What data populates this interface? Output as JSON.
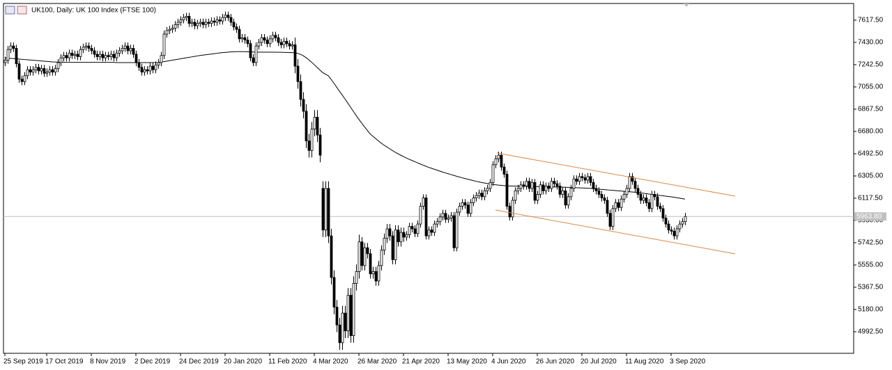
{
  "chart_data": {
    "type": "candlestick",
    "title": "UK100, Daily:  UK 100 Index (FTSE 100)",
    "categories": [
      "25 Sep 2019",
      null,
      null,
      null,
      null,
      null,
      null,
      null,
      null,
      null,
      null,
      null,
      null,
      null,
      null,
      "17 Oct 2019",
      null,
      null,
      null,
      null,
      null,
      null,
      null,
      null,
      null,
      null,
      null,
      null,
      null,
      null,
      null,
      "8 Nov 2019",
      null,
      null,
      null,
      null,
      null,
      null,
      null,
      null,
      null,
      null,
      null,
      null,
      null,
      null,
      null,
      "2 Dec 2019",
      null,
      null,
      null,
      null,
      null,
      null,
      null,
      null,
      null,
      null,
      null,
      null,
      null,
      null,
      null,
      "24 Dec 2019",
      null,
      null,
      null,
      null,
      null,
      null,
      null,
      null,
      null,
      null,
      null,
      null,
      null,
      null,
      null,
      "20 Jan 2020",
      null,
      null,
      null,
      null,
      null,
      null,
      null,
      null,
      null,
      null,
      null,
      null,
      null,
      null,
      null,
      "11 Feb 2020",
      null,
      null,
      null,
      null,
      null,
      null,
      null,
      null,
      null,
      null,
      null,
      null,
      null,
      null,
      null,
      "4 Mar 2020",
      null,
      null,
      null,
      null,
      null,
      null,
      null,
      null,
      null,
      null,
      null,
      null,
      null,
      null,
      null,
      "26 Mar 2020",
      null,
      null,
      null,
      null,
      null,
      null,
      null,
      null,
      null,
      null,
      null,
      null,
      null,
      null,
      null,
      "21 Apr 2020",
      null,
      null,
      null,
      null,
      null,
      null,
      null,
      null,
      null,
      null,
      null,
      null,
      null,
      null,
      null,
      "13 May 2020",
      null,
      null,
      null,
      null,
      null,
      null,
      null,
      null,
      null,
      null,
      null,
      null,
      null,
      null,
      null,
      "4 Jun 2020",
      null,
      null,
      null,
      null,
      null,
      null,
      null,
      null,
      null,
      null,
      null,
      null,
      null,
      null,
      null,
      "26 Jun 2020",
      null,
      null,
      null,
      null,
      null,
      null,
      null,
      null,
      null,
      null,
      null,
      null,
      null,
      null,
      null,
      "20 Jul 2020",
      null,
      null,
      null,
      null,
      null,
      null,
      null,
      null,
      null,
      null,
      null,
      null,
      null,
      null,
      null,
      "11 Aug 2020",
      null,
      null,
      null,
      null,
      null,
      null,
      null,
      null,
      null,
      null,
      null,
      null,
      null,
      null,
      null,
      "3 Sep 2020",
      null,
      null,
      null,
      null,
      null
    ],
    "open": [
      7260,
      7280,
      7370,
      7400,
      7380,
      7250,
      7120,
      7100,
      7150,
      7200,
      7180,
      7200,
      7220,
      7190,
      7210,
      7170,
      7180,
      7200,
      7180,
      7210,
      7260,
      7300,
      7320,
      7300,
      7340,
      7320,
      7330,
      7310,
      7370,
      7390,
      7400,
      7380,
      7360,
      7330,
      7310,
      7330,
      7300,
      7320,
      7310,
      7330,
      7300,
      7340,
      7360,
      7380,
      7400,
      7360,
      7380,
      7330,
      7260,
      7220,
      7180,
      7200,
      7190,
      7230,
      7200,
      7240,
      7260,
      7320,
      7500,
      7530,
      7540,
      7550,
      7580,
      7600,
      7620,
      7640,
      7650,
      7590,
      7600,
      7570,
      7590,
      7600,
      7580,
      7600,
      7590,
      7610,
      7600,
      7620,
      7610,
      7640,
      7660,
      7640,
      7600,
      7560,
      7540,
      7460,
      7470,
      7450,
      7420,
      7300,
      7260,
      7400,
      7430,
      7470,
      7450,
      7420,
      7460,
      7490,
      7470,
      7430,
      7410,
      7440,
      7420,
      7400,
      7410,
      7230,
      7100,
      6950,
      6850,
      6600,
      6520,
      6700,
      6800,
      6650,
      6200,
      5850,
      6200,
      5800,
      5450,
      5200,
      5050,
      4900,
      5150,
      5000,
      5300,
      4960,
      5400,
      5500,
      5750,
      5550,
      5700,
      5650,
      5480,
      5500,
      5420,
      5550,
      5680,
      5780,
      5860,
      5800,
      5600,
      5850,
      5750,
      5830,
      5790,
      5810,
      5880,
      5860,
      5820,
      5900,
      6050,
      6120,
      5800,
      5850,
      5830,
      5900,
      5920,
      5960,
      5990,
      5940,
      5950,
      5970,
      5700,
      6000,
      6050,
      6080,
      6060,
      5990,
      6080,
      6120,
      6140,
      6160,
      6130,
      6180,
      6200,
      6250,
      6400,
      6450,
      6480,
      6380,
      6320,
      6050,
      5960,
      6100,
      6180,
      6200,
      6230,
      6220,
      6260,
      6200,
      6250,
      6100,
      6150,
      6230,
      6180,
      6220,
      6200,
      6260,
      6240,
      6220,
      6150,
      6180,
      6060,
      6130,
      6200,
      6280,
      6260,
      6300,
      6290,
      6270,
      6300,
      6250,
      6200,
      6180,
      6150,
      6120,
      6100,
      5990,
      5880,
      6030,
      6080,
      6040,
      6110,
      6150,
      6200,
      6300,
      6260,
      6200,
      6150,
      6100,
      6120,
      6080,
      6030,
      6150,
      6130,
      6050,
      6030,
      5950,
      5900,
      5850,
      5840,
      5800,
      5860,
      5900,
      5920
    ],
    "high": [
      7310,
      7400,
      7430,
      7430,
      7410,
      7280,
      7150,
      7180,
      7230,
      7230,
      7230,
      7250,
      7250,
      7240,
      7240,
      7210,
      7230,
      7230,
      7240,
      7290,
      7330,
      7350,
      7350,
      7370,
      7370,
      7360,
      7360,
      7400,
      7420,
      7430,
      7430,
      7410,
      7390,
      7360,
      7360,
      7360,
      7350,
      7350,
      7360,
      7360,
      7370,
      7390,
      7410,
      7430,
      7430,
      7410,
      7410,
      7360,
      7290,
      7250,
      7230,
      7230,
      7260,
      7260,
      7270,
      7290,
      7350,
      7530,
      7560,
      7570,
      7580,
      7610,
      7630,
      7650,
      7670,
      7680,
      7680,
      7630,
      7630,
      7620,
      7630,
      7630,
      7630,
      7630,
      7640,
      7640,
      7650,
      7650,
      7670,
      7690,
      7690,
      7670,
      7630,
      7590,
      7570,
      7500,
      7500,
      7480,
      7450,
      7330,
      7430,
      7460,
      7500,
      7500,
      7480,
      7490,
      7520,
      7520,
      7500,
      7460,
      7470,
      7470,
      7450,
      7440,
      7470,
      7290,
      7160,
      7010,
      6910,
      6660,
      6760,
      6860,
      6860,
      6710,
      6260,
      6260,
      6260,
      5860,
      5510,
      5260,
      5110,
      5210,
      5210,
      5360,
      5360,
      5460,
      5560,
      5810,
      5790,
      5740,
      5740,
      5690,
      5540,
      5540,
      5590,
      5720,
      5820,
      5900,
      5900,
      5840,
      5890,
      5890,
      5870,
      5870,
      5840,
      5910,
      5910,
      5890,
      5930,
      6080,
      6150,
      6150,
      5880,
      5880,
      5930,
      5950,
      5990,
      6020,
      6020,
      5980,
      6000,
      6000,
      6030,
      6080,
      6110,
      6110,
      6090,
      6110,
      6150,
      6170,
      6190,
      6190,
      6210,
      6230,
      6280,
      6430,
      6480,
      6510,
      6510,
      6410,
      6350,
      6080,
      6130,
      6210,
      6230,
      6260,
      6260,
      6290,
      6290,
      6280,
      6280,
      6180,
      6260,
      6260,
      6250,
      6250,
      6290,
      6290,
      6270,
      6250,
      6210,
      6210,
      6160,
      6230,
      6310,
      6310,
      6330,
      6330,
      6320,
      6330,
      6330,
      6280,
      6230,
      6210,
      6180,
      6150,
      6130,
      6020,
      6060,
      6110,
      6110,
      6140,
      6180,
      6230,
      6330,
      6330,
      6290,
      6230,
      6180,
      6150,
      6150,
      6110,
      6180,
      6180,
      6160,
      6080,
      6060,
      5980,
      5930,
      5880,
      5870,
      5890,
      5930,
      5950,
      5994
    ],
    "low": [
      7230,
      7250,
      7340,
      7350,
      7220,
      7090,
      7070,
      7070,
      7120,
      7150,
      7150,
      7170,
      7160,
      7160,
      7140,
      7140,
      7150,
      7150,
      7150,
      7180,
      7230,
      7270,
      7270,
      7270,
      7290,
      7290,
      7280,
      7280,
      7340,
      7360,
      7350,
      7330,
      7300,
      7280,
      7280,
      7270,
      7270,
      7280,
      7280,
      7270,
      7270,
      7310,
      7330,
      7350,
      7330,
      7330,
      7300,
      7230,
      7190,
      7150,
      7150,
      7160,
      7160,
      7170,
      7170,
      7210,
      7230,
      7290,
      7470,
      7500,
      7510,
      7520,
      7550,
      7570,
      7590,
      7610,
      7560,
      7560,
      7540,
      7540,
      7560,
      7550,
      7550,
      7560,
      7560,
      7570,
      7570,
      7580,
      7580,
      7610,
      7610,
      7570,
      7530,
      7510,
      7430,
      7430,
      7420,
      7390,
      7270,
      7230,
      7230,
      7370,
      7400,
      7420,
      7390,
      7390,
      7430,
      7440,
      7400,
      7380,
      7380,
      7390,
      7370,
      7370,
      7170,
      7040,
      6890,
      6790,
      6540,
      6460,
      6460,
      6640,
      6590,
      6420,
      5790,
      5790,
      5740,
      5390,
      5140,
      4990,
      4840,
      4840,
      4940,
      4940,
      4900,
      4900,
      5340,
      5440,
      5510,
      5510,
      5610,
      5440,
      5440,
      5380,
      5380,
      5510,
      5640,
      5740,
      5760,
      5560,
      5560,
      5710,
      5710,
      5750,
      5760,
      5780,
      5830,
      5790,
      5790,
      5870,
      6020,
      5770,
      5770,
      5800,
      5800,
      5870,
      5890,
      5930,
      5910,
      5910,
      5920,
      5670,
      5670,
      5970,
      6020,
      6030,
      5960,
      5960,
      6050,
      6090,
      6110,
      6100,
      6100,
      6150,
      6170,
      6220,
      6370,
      6420,
      6350,
      6290,
      6020,
      5930,
      5930,
      6070,
      6150,
      6170,
      6190,
      6190,
      6170,
      6170,
      6070,
      6070,
      6120,
      6150,
      6150,
      6170,
      6170,
      6210,
      6190,
      6120,
      6120,
      6030,
      6030,
      6100,
      6170,
      6230,
      6230,
      6260,
      6240,
      6240,
      6220,
      6170,
      6150,
      6120,
      6090,
      6070,
      5960,
      5850,
      5850,
      6000,
      6010,
      6010,
      6080,
      6120,
      6170,
      6230,
      6170,
      6120,
      6070,
      6070,
      6050,
      6000,
      6000,
      6100,
      6020,
      6000,
      5920,
      5870,
      5820,
      5810,
      5770,
      5770,
      5830,
      5870,
      5890
    ],
    "close": [
      7280,
      7370,
      7400,
      7380,
      7250,
      7120,
      7100,
      7150,
      7200,
      7180,
      7200,
      7220,
      7190,
      7210,
      7170,
      7180,
      7200,
      7180,
      7210,
      7260,
      7300,
      7320,
      7300,
      7340,
      7320,
      7330,
      7310,
      7370,
      7390,
      7400,
      7380,
      7360,
      7330,
      7310,
      7330,
      7300,
      7320,
      7310,
      7330,
      7300,
      7340,
      7360,
      7380,
      7400,
      7360,
      7380,
      7330,
      7260,
      7220,
      7180,
      7200,
      7190,
      7230,
      7200,
      7240,
      7260,
      7320,
      7500,
      7530,
      7540,
      7550,
      7580,
      7600,
      7620,
      7640,
      7650,
      7590,
      7600,
      7570,
      7590,
      7600,
      7580,
      7600,
      7590,
      7610,
      7600,
      7620,
      7610,
      7640,
      7660,
      7640,
      7600,
      7560,
      7540,
      7460,
      7470,
      7450,
      7420,
      7300,
      7260,
      7400,
      7430,
      7470,
      7450,
      7420,
      7460,
      7490,
      7470,
      7430,
      7410,
      7440,
      7420,
      7400,
      7410,
      7230,
      7100,
      6950,
      6850,
      6600,
      6520,
      6700,
      6800,
      6650,
      6480,
      5850,
      6200,
      5800,
      5450,
      5200,
      5050,
      4900,
      5150,
      5000,
      5300,
      4960,
      5400,
      5500,
      5750,
      5550,
      5700,
      5650,
      5480,
      5500,
      5420,
      5550,
      5680,
      5780,
      5860,
      5800,
      5600,
      5850,
      5750,
      5830,
      5790,
      5810,
      5880,
      5860,
      5820,
      5900,
      6050,
      6120,
      5800,
      5850,
      5830,
      5900,
      5920,
      5960,
      5990,
      5940,
      5950,
      5970,
      5700,
      6000,
      6050,
      6080,
      6060,
      5990,
      6080,
      6120,
      6140,
      6160,
      6130,
      6180,
      6200,
      6250,
      6400,
      6450,
      6480,
      6380,
      6320,
      6050,
      5960,
      6100,
      6180,
      6200,
      6230,
      6220,
      6260,
      6200,
      6250,
      6100,
      6150,
      6230,
      6180,
      6220,
      6200,
      6260,
      6240,
      6220,
      6150,
      6180,
      6060,
      6130,
      6200,
      6280,
      6260,
      6300,
      6290,
      6270,
      6300,
      6250,
      6200,
      6180,
      6150,
      6120,
      6100,
      5990,
      5880,
      6030,
      6080,
      6040,
      6110,
      6150,
      6200,
      6300,
      6260,
      6200,
      6150,
      6100,
      6120,
      6080,
      6030,
      6150,
      6130,
      6050,
      6030,
      5950,
      5900,
      5850,
      5840,
      5800,
      5860,
      5900,
      5920,
      5963.8
    ],
    "up_color": "#ffffff",
    "down_color": "#000000",
    "outline_color": "#000000",
    "ma": {
      "color": "#000000",
      "values": [
        7300,
        7298,
        7296,
        7294,
        7292,
        7290,
        7288,
        7286,
        7284,
        7282,
        7280,
        7278,
        7276,
        7274,
        7272,
        7270,
        7268,
        7266,
        7265,
        7264,
        7263,
        7262,
        7262,
        7262,
        7262,
        7262,
        7262,
        7262,
        7262,
        7262,
        7262,
        7262,
        7262,
        7262,
        7262,
        7262,
        7262,
        7262,
        7262,
        7262,
        7260,
        7260,
        7260,
        7260,
        7260,
        7260,
        7260,
        7260,
        7260,
        7260,
        7260,
        7260,
        7260,
        7260,
        7260,
        7260,
        7265,
        7268,
        7272,
        7276,
        7280,
        7284,
        7288,
        7292,
        7296,
        7300,
        7304,
        7308,
        7312,
        7316,
        7320,
        7323,
        7326,
        7329,
        7332,
        7335,
        7338,
        7341,
        7344,
        7346,
        7348,
        7350,
        7351,
        7352,
        7352,
        7352,
        7352,
        7351,
        7350,
        7349,
        7348,
        7348,
        7348,
        7348,
        7348,
        7348,
        7348,
        7348,
        7347,
        7347,
        7346,
        7346,
        7345,
        7344,
        7342,
        7338,
        7330,
        7318,
        7302,
        7284,
        7264,
        7242,
        7220,
        7198,
        7176,
        7162,
        7150,
        7120,
        7088,
        7054,
        7020,
        6988,
        6954,
        6920,
        6885,
        6850,
        6815,
        6782,
        6750,
        6720,
        6690,
        6660,
        6640,
        6620,
        6600,
        6582,
        6565,
        6550,
        6535,
        6520,
        6505,
        6492,
        6480,
        6468,
        6457,
        6446,
        6436,
        6426,
        6416,
        6406,
        6396,
        6387,
        6378,
        6370,
        6362,
        6354,
        6346,
        6338,
        6331,
        6324,
        6317,
        6310,
        6303,
        6296,
        6290,
        6284,
        6278,
        6272,
        6266,
        6260,
        6255,
        6250,
        6246,
        6242,
        6238,
        6234,
        6231,
        6228,
        6226,
        6224,
        6222,
        6220,
        6220,
        6220,
        6219,
        6219,
        6218,
        6218,
        6217,
        6217,
        6216,
        6216,
        6215,
        6215,
        6214,
        6214,
        6213,
        6213,
        6212,
        6212,
        6211,
        6210,
        6209,
        6208,
        6207,
        6206,
        6205,
        6204,
        6203,
        6202,
        6201,
        6198,
        6196,
        6194,
        6192,
        6190,
        6188,
        6186,
        6184,
        6182,
        6180,
        6178,
        6176,
        6174,
        6172,
        6170,
        6168,
        6165,
        6162,
        6159,
        6156,
        6153,
        6150,
        6147,
        6144,
        6141,
        6138,
        6135,
        6132,
        6129,
        6126,
        6122,
        6118,
        6114,
        6110
      ]
    },
    "current_price": {
      "value": 5963.8,
      "label": "5963.80"
    },
    "ylim": [
      4811,
      7758
    ],
    "yticks": [
      {
        "value": 4992.5,
        "label": "4992.50"
      },
      {
        "value": 5180,
        "label": "5180.00"
      },
      {
        "value": 5367.5,
        "label": "5367.50"
      },
      {
        "value": 5555,
        "label": "5555.00"
      },
      {
        "value": 5742.5,
        "label": "5742.50"
      },
      {
        "value": 5930,
        "label": "5930.00"
      },
      {
        "value": 6117.5,
        "label": "6117.50"
      },
      {
        "value": 6305,
        "label": "6305.00"
      },
      {
        "value": 6492.5,
        "label": "6492.50"
      },
      {
        "value": 6680,
        "label": "6680.00"
      },
      {
        "value": 6867.5,
        "label": "6867.50"
      },
      {
        "value": 7055,
        "label": "7055.00"
      },
      {
        "value": 7242.5,
        "label": "7242.50"
      },
      {
        "value": 7430,
        "label": "7430.00"
      },
      {
        "value": 7617.5,
        "label": "7617.50"
      }
    ]
  }
}
